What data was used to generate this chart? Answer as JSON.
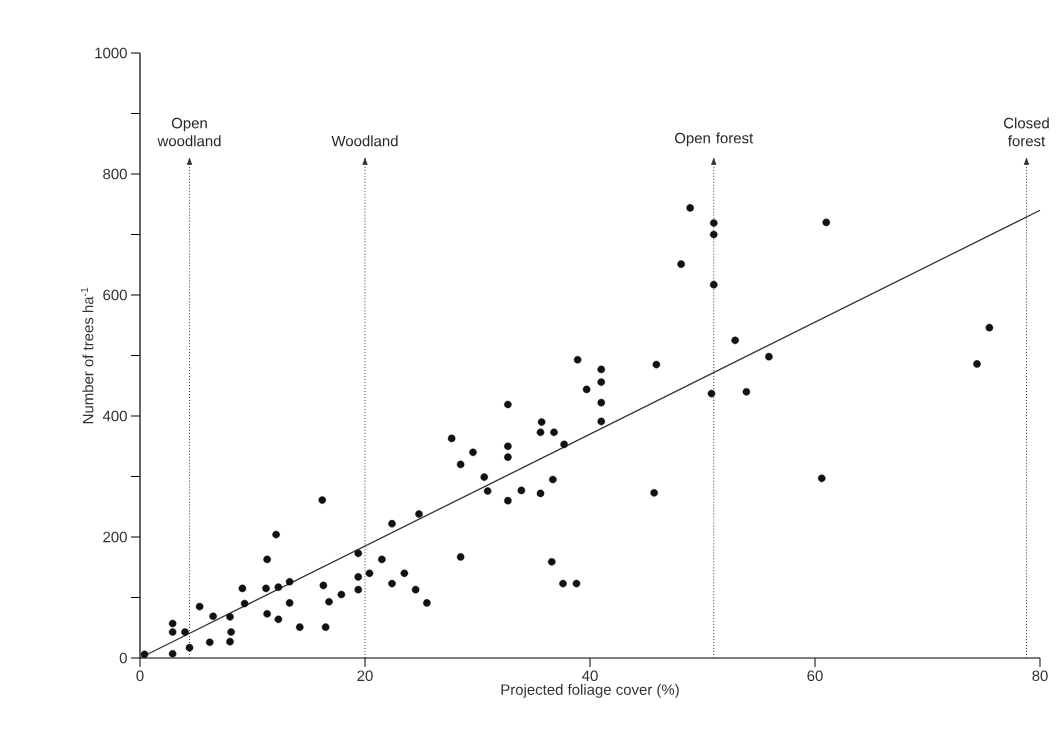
{
  "chart_data": {
    "type": "scatter",
    "xlabel": "Projected foliage cover (%)",
    "ylabel": "Number of trees  ha$^{-1}$",
    "xlim": [
      0,
      80
    ],
    "ylim": [
      0,
      1000
    ],
    "xticks": [
      0,
      20,
      40,
      60,
      80
    ],
    "yticks": [
      0,
      {
        "value": 100,
        "label": null
      },
      200,
      {
        "value": 300,
        "label": null
      },
      400,
      {
        "value": 500,
        "label": null
      },
      600,
      {
        "value": 700,
        "label": null
      },
      800,
      {
        "value": 900,
        "label": null
      },
      1000
    ],
    "grid": false,
    "series": [
      {
        "color": "#111111",
        "marker": "circle",
        "x": [
          0.4,
          2.9,
          2.9,
          2.9,
          4.0,
          4.4,
          5.3,
          6.2,
          6.5,
          8.0,
          8.1,
          8.0,
          9.1,
          9.3,
          11.3,
          11.2,
          11.3,
          12.1,
          12.3,
          12.3,
          13.3,
          13.3,
          14.2,
          16.2,
          16.3,
          16.8,
          16.5,
          17.9,
          19.4,
          19.4,
          19.4,
          20.4,
          21.5,
          22.4,
          22.4,
          23.5,
          24.5,
          24.8,
          25.5,
          38.9,
          41.0,
          41.0,
          39.7,
          41.0,
          41.0,
          45.9,
          50.8,
          32.7,
          35.7,
          35.6,
          36.8,
          27.7,
          29.6,
          28.5,
          32.7,
          32.7,
          37.7,
          30.6,
          30.9,
          33.9,
          35.6,
          32.7,
          36.7,
          45.7,
          28.5,
          36.6,
          37.6,
          38.8,
          48.9,
          51.0,
          51.0,
          48.1,
          51.0,
          61.0,
          52.9,
          55.9,
          53.9,
          75.5,
          74.4,
          60.6
        ],
        "values": [
          6,
          57,
          43,
          7,
          43,
          17,
          85,
          26,
          69,
          68,
          43,
          27,
          115,
          90,
          163,
          115,
          73,
          204,
          117,
          64,
          126,
          91,
          51,
          261,
          120,
          93,
          51,
          105,
          173,
          134,
          113,
          140,
          163,
          222,
          123,
          140,
          113,
          238,
          91,
          493,
          477,
          456,
          444,
          422,
          391,
          485,
          437,
          419,
          390,
          373,
          373,
          363,
          340,
          320,
          350,
          332,
          353,
          299,
          276,
          277,
          272,
          260,
          295,
          273,
          167,
          159,
          123,
          123,
          744,
          719,
          700,
          651,
          617,
          720,
          525,
          498,
          440,
          546,
          486,
          297
        ]
      },
      {
        "type": "line",
        "color": "#333333",
        "marker": "none",
        "x": [
          0,
          80
        ],
        "values": [
          0,
          740
        ]
      }
    ],
    "ref_lines": [
      {
        "axis": "x",
        "value": 4.4,
        "label": "Open woodland",
        "line_style": "dotted"
      },
      {
        "axis": "x",
        "value": 20,
        "label": "Woodland",
        "line_style": "dotted"
      },
      {
        "axis": "x",
        "value": 51,
        "label": "Open forest",
        "line_style": "dotted"
      },
      {
        "axis": "x",
        "value": 78.8,
        "label": "Closed forest",
        "line_style": "dotted"
      }
    ]
  }
}
